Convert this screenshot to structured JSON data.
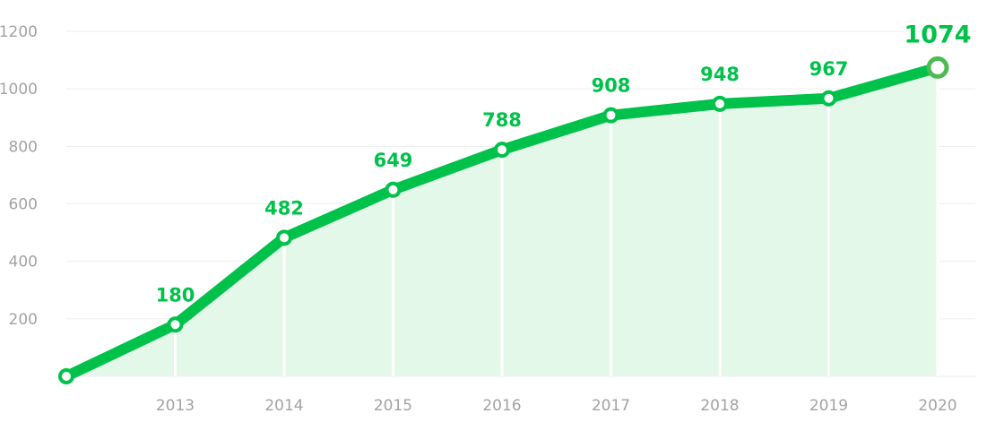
{
  "chart_data": {
    "type": "line",
    "x": [
      "",
      "2013",
      "2014",
      "2015",
      "2016",
      "2017",
      "2018",
      "2019",
      "2020"
    ],
    "values": [
      0,
      180,
      482,
      649,
      788,
      908,
      948,
      967,
      1074
    ],
    "data_labels": [
      "",
      "180",
      "482",
      "649",
      "788",
      "908",
      "948",
      "967",
      "1074"
    ],
    "y_ticks": [
      "200",
      "400",
      "600",
      "800",
      "1000",
      "1200"
    ],
    "ylim": [
      0,
      1200
    ],
    "grid": true,
    "legend": "none",
    "title": "",
    "xlabel": "",
    "ylabel": ""
  },
  "colors": {
    "line": "#00c24a",
    "area": "#e4f8ea",
    "label": "#00c24a",
    "last_point": "#4dbb53",
    "grid": "#eeeeee",
    "tick_text": "#a3a3a3",
    "background": "#ffffff"
  }
}
